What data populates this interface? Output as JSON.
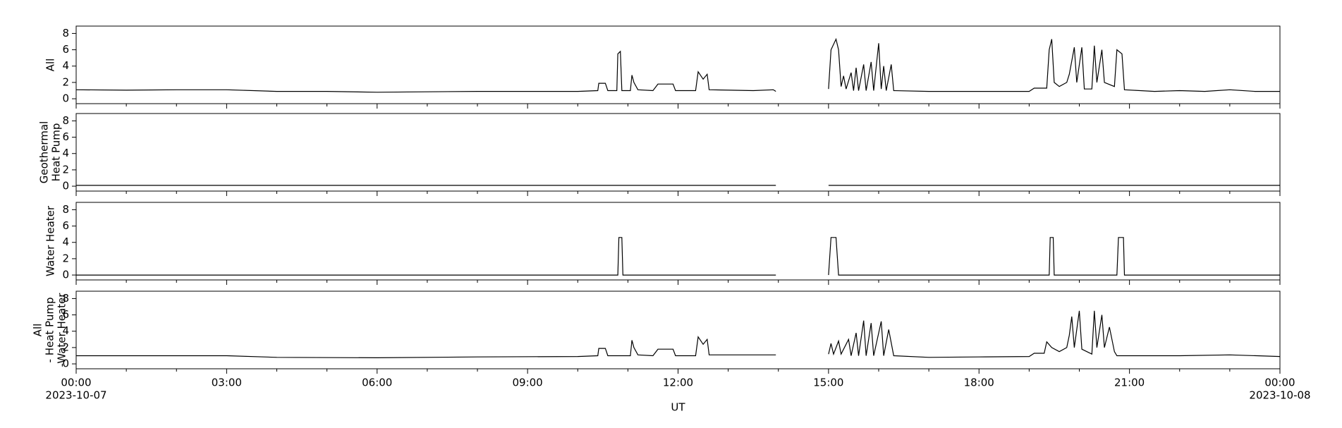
{
  "chart_data": [
    {
      "type": "line",
      "ylabel_lines": [
        "All"
      ],
      "color": "#000000",
      "xlim": [
        0,
        24
      ],
      "ylim": [
        -0.6,
        8.9
      ],
      "yticks": [
        0,
        2,
        4,
        6,
        8
      ],
      "xticks": [
        0,
        3,
        6,
        9,
        12,
        15,
        18,
        21,
        24
      ],
      "xminorticks": [
        1,
        2,
        4,
        5,
        7,
        8,
        10,
        11,
        13,
        14,
        16,
        17,
        19,
        20,
        22,
        23
      ],
      "series": [
        {
          "x": [
            0,
            1,
            2,
            3,
            4,
            5,
            6,
            7,
            8,
            9,
            10,
            10.4,
            10.42,
            10.55,
            10.6,
            10.78,
            10.8,
            10.85,
            10.88,
            11.05,
            11.08,
            11.12,
            11.2,
            11.5,
            11.6,
            11.9,
            11.95,
            12.35,
            12.4,
            12.5,
            12.58,
            12.62,
            13.5,
            13.9,
            13.95,
            14.5,
            15.0,
            15.05,
            15.15,
            15.2,
            15.25,
            15.3,
            15.35,
            15.45,
            15.5,
            15.55,
            15.6,
            15.7,
            15.75,
            15.85,
            15.9,
            16.0,
            16.05,
            16.1,
            16.15,
            16.25,
            16.3,
            17,
            18,
            19,
            19.1,
            19.35,
            19.4,
            19.45,
            19.5,
            19.6,
            19.75,
            19.8,
            19.9,
            19.95,
            20.05,
            20.1,
            20.25,
            20.3,
            20.35,
            20.45,
            20.5,
            20.7,
            20.75,
            20.85,
            20.9,
            21.5,
            22,
            22.5,
            23,
            23.5,
            24
          ],
          "values": [
            1.1,
            1.05,
            1.1,
            1.1,
            0.9,
            0.9,
            0.8,
            0.85,
            0.9,
            0.9,
            0.9,
            1.0,
            1.9,
            1.9,
            1.0,
            1.0,
            5.5,
            5.8,
            1.0,
            1.0,
            2.9,
            2.0,
            1.1,
            1.0,
            1.8,
            1.8,
            1.0,
            1.0,
            3.3,
            2.4,
            3.0,
            1.1,
            1.0,
            1.1,
            0.9,
            null,
            1.2,
            6.0,
            7.3,
            6.0,
            1.5,
            2.8,
            1.2,
            3.2,
            1.0,
            3.8,
            1.0,
            4.2,
            1.0,
            4.5,
            1.0,
            6.8,
            1.2,
            4.0,
            1.0,
            4.2,
            1.0,
            0.9,
            0.9,
            0.9,
            1.3,
            1.3,
            6.0,
            7.3,
            2.0,
            1.5,
            2.0,
            3.0,
            6.3,
            2.0,
            6.3,
            1.2,
            1.2,
            6.5,
            2.0,
            6.0,
            2.0,
            1.5,
            6.0,
            5.5,
            1.1,
            0.9,
            1.0,
            0.9,
            1.1,
            0.9,
            0.9
          ]
        }
      ]
    },
    {
      "type": "line",
      "ylabel_lines": [
        "Geothermal",
        "Heat Pump"
      ],
      "color": "#000000",
      "xlim": [
        0,
        24
      ],
      "ylim": [
        -0.6,
        8.9
      ],
      "yticks": [
        0,
        2,
        4,
        6,
        8
      ],
      "xticks": [
        0,
        3,
        6,
        9,
        12,
        15,
        18,
        21,
        24
      ],
      "xminorticks": [
        1,
        2,
        4,
        5,
        7,
        8,
        10,
        11,
        13,
        14,
        16,
        17,
        19,
        20,
        22,
        23
      ],
      "series": [
        {
          "x": [
            0,
            13.95,
            14.5,
            15.0,
            24
          ],
          "values": [
            0.1,
            0.1,
            null,
            0.1,
            0.1
          ]
        }
      ]
    },
    {
      "type": "line",
      "ylabel_lines": [
        "Water Heater"
      ],
      "color": "#000000",
      "xlim": [
        0,
        24
      ],
      "ylim": [
        -0.6,
        8.9
      ],
      "yticks": [
        0,
        2,
        4,
        6,
        8
      ],
      "xticks": [
        0,
        3,
        6,
        9,
        12,
        15,
        18,
        21,
        24
      ],
      "xminorticks": [
        1,
        2,
        4,
        5,
        7,
        8,
        10,
        11,
        13,
        14,
        16,
        17,
        19,
        20,
        22,
        23
      ],
      "series": [
        {
          "x": [
            0,
            10.8,
            10.82,
            10.88,
            10.9,
            13.95,
            14.5,
            15.0,
            15.05,
            15.15,
            15.2,
            19.4,
            19.42,
            19.48,
            19.5,
            20.75,
            20.78,
            20.88,
            20.9,
            24
          ],
          "values": [
            0,
            0,
            4.6,
            4.6,
            0,
            0,
            null,
            0,
            4.6,
            4.6,
            0,
            0,
            4.6,
            4.6,
            0,
            0,
            4.6,
            4.6,
            0,
            0
          ]
        }
      ]
    },
    {
      "type": "line",
      "ylabel_lines": [
        "All",
        "- Heat Pump",
        "-Water Heater"
      ],
      "color": "#000000",
      "xlabel": "UT",
      "xlim": [
        0,
        24
      ],
      "ylim": [
        -0.6,
        8.9
      ],
      "yticks": [
        0,
        2,
        4,
        6,
        8
      ],
      "xticks": [
        {
          "value": 0,
          "label": "00:00"
        },
        {
          "value": 3,
          "label": "03:00"
        },
        {
          "value": 6,
          "label": "06:00"
        },
        {
          "value": 9,
          "label": "09:00"
        },
        {
          "value": 12,
          "label": "12:00"
        },
        {
          "value": 15,
          "label": "15:00"
        },
        {
          "value": 18,
          "label": "18:00"
        },
        {
          "value": 21,
          "label": "21:00"
        },
        {
          "value": 24,
          "label": "00:00"
        }
      ],
      "xtick_sublabels": [
        {
          "value": 0,
          "label": "2023-10-07"
        },
        {
          "value": 24,
          "label": "2023-10-08"
        }
      ],
      "xminorticks": [
        1,
        2,
        4,
        5,
        7,
        8,
        10,
        11,
        13,
        14,
        16,
        17,
        19,
        20,
        22,
        23
      ],
      "series": [
        {
          "x": [
            0,
            3,
            4,
            6,
            8,
            10,
            10.4,
            10.42,
            10.55,
            10.6,
            11.05,
            11.08,
            11.12,
            11.2,
            11.5,
            11.6,
            11.9,
            11.95,
            12.35,
            12.4,
            12.5,
            12.58,
            12.62,
            13.95,
            14.5,
            15.0,
            15.05,
            15.1,
            15.2,
            15.25,
            15.4,
            15.45,
            15.55,
            15.6,
            15.7,
            15.75,
            15.85,
            15.9,
            16.05,
            16.1,
            16.2,
            16.3,
            17,
            18,
            19,
            19.1,
            19.3,
            19.35,
            19.45,
            19.6,
            19.75,
            19.8,
            19.85,
            19.9,
            20.0,
            20.05,
            20.25,
            20.3,
            20.35,
            20.45,
            20.5,
            20.6,
            20.7,
            20.75,
            22,
            23,
            24
          ],
          "values": [
            1.0,
            1.0,
            0.8,
            0.75,
            0.85,
            0.9,
            1.0,
            1.9,
            1.9,
            1.0,
            1.0,
            2.9,
            2.0,
            1.1,
            1.0,
            1.8,
            1.8,
            1.0,
            1.0,
            3.3,
            2.4,
            3.0,
            1.1,
            1.1,
            null,
            1.2,
            2.5,
            1.2,
            2.8,
            1.2,
            3.0,
            1.0,
            3.8,
            1.0,
            5.3,
            1.0,
            5.0,
            1.0,
            5.2,
            1.0,
            4.2,
            1.0,
            0.8,
            0.85,
            0.9,
            1.3,
            1.3,
            2.7,
            2.0,
            1.5,
            2.0,
            3.5,
            5.8,
            2.0,
            6.5,
            1.8,
            1.2,
            6.5,
            2.0,
            6.0,
            2.0,
            4.5,
            1.5,
            1.0,
            1.0,
            1.1,
            0.9
          ]
        }
      ]
    }
  ]
}
